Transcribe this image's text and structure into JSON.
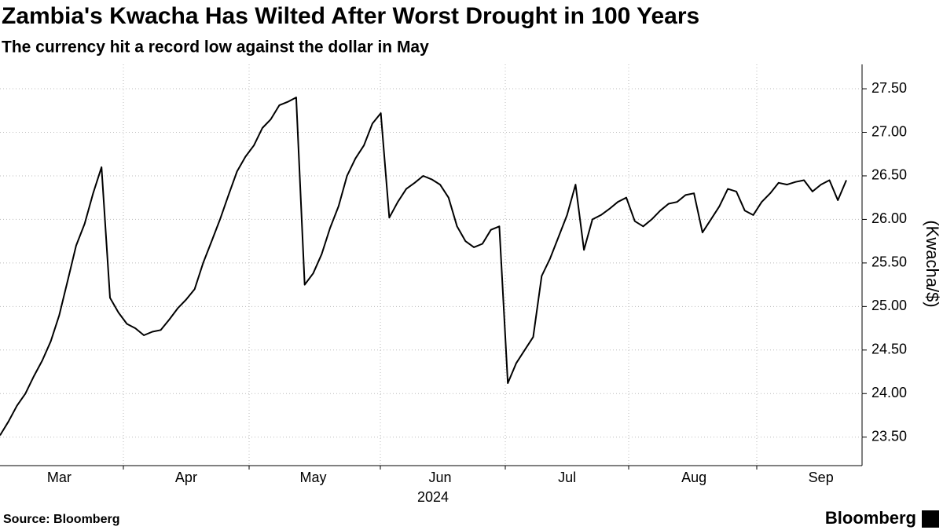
{
  "chart_data": {
    "type": "line",
    "title": "Zambia's Kwacha Has Wilted After Worst Drought in 100 Years",
    "subtitle": "The currency hit a record low against the dollar in May",
    "x_label": "2024",
    "y_label": "(Kwacha/$)",
    "source": "Source: Bloomberg",
    "brand": "Bloomberg",
    "categories": [
      null,
      null,
      null,
      null,
      null,
      null,
      null,
      "Mar",
      null,
      null,
      null,
      null,
      null,
      null,
      null,
      null,
      null,
      null,
      null,
      null,
      null,
      null,
      "Apr",
      null,
      null,
      null,
      null,
      null,
      null,
      null,
      null,
      null,
      null,
      null,
      null,
      null,
      null,
      "May",
      null,
      null,
      null,
      null,
      null,
      null,
      null,
      null,
      null,
      null,
      null,
      null,
      null,
      null,
      "Jun",
      null,
      null,
      null,
      null,
      null,
      null,
      null,
      null,
      null,
      null,
      null,
      null,
      null,
      null,
      "Jul",
      null,
      null,
      null,
      null,
      null,
      null,
      null,
      null,
      null,
      null,
      null,
      null,
      null,
      null,
      "Aug",
      null,
      null,
      null,
      null,
      null,
      null,
      null,
      null,
      null,
      null,
      null,
      null,
      null,
      null,
      "Sep",
      null,
      null,
      null
    ],
    "series": [
      {
        "name": "Kwacha/$",
        "color": "#000000",
        "values": [
          23.52,
          23.68,
          23.86,
          24.0,
          24.2,
          24.38,
          24.6,
          24.9,
          25.3,
          25.7,
          25.95,
          26.3,
          26.6,
          25.1,
          24.93,
          24.8,
          24.75,
          24.67,
          24.71,
          24.73,
          24.85,
          24.98,
          25.08,
          25.2,
          25.5,
          25.75,
          26.0,
          26.28,
          26.55,
          26.72,
          26.85,
          27.05,
          27.15,
          27.31,
          27.35,
          27.4,
          25.25,
          25.38,
          25.6,
          25.9,
          26.15,
          26.5,
          26.7,
          26.85,
          27.1,
          27.22,
          26.02,
          26.2,
          26.35,
          26.42,
          26.5,
          26.46,
          26.4,
          26.25,
          25.92,
          25.75,
          25.68,
          25.72,
          25.88,
          25.92,
          24.12,
          24.35,
          24.5,
          24.65,
          25.35,
          25.55,
          25.8,
          26.05,
          26.4,
          25.65,
          26.0,
          26.05,
          26.12,
          26.2,
          26.25,
          25.98,
          25.92,
          26.0,
          26.1,
          26.18,
          26.2,
          26.28,
          26.3,
          25.85,
          26.0,
          26.15,
          26.35,
          26.32,
          26.1,
          26.05,
          26.2,
          26.3,
          26.42,
          26.4,
          26.43,
          26.45,
          26.32,
          26.4,
          26.45,
          26.22,
          26.45
        ]
      }
    ],
    "ylim": [
      23.2,
      27.78
    ],
    "yticks": [
      {
        "value": 23.5,
        "label": "23.50"
      },
      {
        "value": 24,
        "label": "24.00"
      },
      {
        "value": 24.5,
        "label": "24.50"
      },
      {
        "value": 25,
        "label": "25.00"
      },
      {
        "value": 25.5,
        "label": "25.50"
      },
      {
        "value": 26,
        "label": "26.00"
      },
      {
        "value": 26.5,
        "label": "26.50"
      },
      {
        "value": 27,
        "label": "27.00"
      },
      {
        "value": 27.5,
        "label": "27.50"
      }
    ],
    "grid": true
  }
}
